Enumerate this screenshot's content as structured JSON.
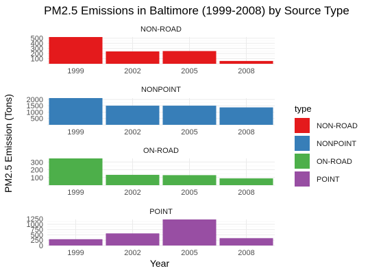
{
  "chart_data": {
    "type": "bar",
    "title": "PM2.5 Emissions in Baltimore (1999-2008) by Source Type",
    "xlabel": "Year",
    "ylabel": "PM2.5 Emission (Tons)",
    "categories": [
      "1999",
      "2002",
      "2005",
      "2008"
    ],
    "grid": true,
    "legend_position": "right",
    "legend_title": "type",
    "series": [
      {
        "name": "NON-ROAD",
        "color": "#E41A1C",
        "values": [
          522,
          241,
          248,
          55
        ],
        "ylim": [
          0,
          522
        ],
        "ticks": [
          100,
          200,
          300,
          400,
          500
        ]
      },
      {
        "name": "NONPOINT",
        "color": "#377EB8",
        "values": [
          2108,
          1510,
          1510,
          1373
        ],
        "ylim": [
          0,
          2108
        ],
        "ticks": [
          500,
          1000,
          1500,
          2000
        ]
      },
      {
        "name": "ON-ROAD",
        "color": "#4DAF4A",
        "values": [
          347,
          134,
          130,
          88
        ],
        "ylim": [
          0,
          347
        ],
        "ticks": [
          100,
          200,
          300
        ]
      },
      {
        "name": "POINT",
        "color": "#984EA3",
        "values": [
          297,
          570,
          1225,
          345
        ],
        "ylim": [
          0,
          1225
        ],
        "ticks": [
          0,
          250,
          500,
          750,
          1000,
          1250
        ]
      }
    ]
  }
}
